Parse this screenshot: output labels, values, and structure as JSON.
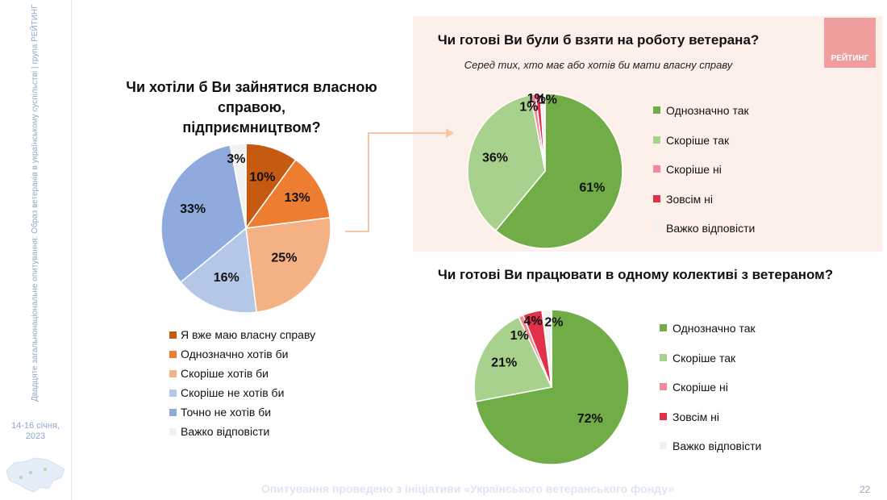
{
  "sidebar": {
    "vertical_text": "Двадцяте загальнонаціональне опитування: Образ ветеранів в українському суспільстві | група РЕЙТИНГ",
    "dates": "14-16 січня,",
    "year": "2023"
  },
  "logo": "РЕЙТИНГ",
  "footer": "Опитування проведено з ініціативи «Українського ветеранського фонду»",
  "page_number": "22",
  "chart_data": [
    {
      "type": "pie",
      "title_line1": "Чи хотіли б Ви зайнятися власною справою,",
      "title_line2": "підприємництвом?",
      "categories": [
        "Я вже маю власну справу",
        "Однозначно хотів би",
        "Скоріше хотів би",
        "Скоріше не хотів би",
        "Точно не хотів би",
        "Важко відповісти"
      ],
      "values": [
        10,
        13,
        25,
        16,
        33,
        3
      ],
      "labels": [
        "10%",
        "13%",
        "25%",
        "16%",
        "33%",
        "3%"
      ],
      "colors": [
        "#c55a11",
        "#ed7d31",
        "#f4b183",
        "#b4c7e7",
        "#8faadc",
        "#f2f2f2"
      ],
      "legend_position": "bottom"
    },
    {
      "type": "pie",
      "title": "Чи готові Ви були б взяти на роботу ветерана?",
      "subtitle": "Серед тих, хто має або хотів би мати власну справу",
      "categories": [
        "Однозначно так",
        "Скоріше так",
        "Скоріше ні",
        "Зовсім ні",
        "Важко відповісти"
      ],
      "values": [
        61,
        36,
        1,
        1,
        1
      ],
      "labels": [
        "61%",
        "36%",
        "1%",
        "1%",
        "1%"
      ],
      "colors": [
        "#70ad47",
        "#a9d18e",
        "#f08a96",
        "#e0304a",
        "#f2f2f2"
      ],
      "legend_position": "right"
    },
    {
      "type": "pie",
      "title": "Чи готові Ви працювати в одному колективі з ветераном?",
      "categories": [
        "Однозначно так",
        "Скоріше так",
        "Скоріше ні",
        "Зовсім ні",
        "Важко відповісти"
      ],
      "values": [
        72,
        21,
        1,
        4,
        2
      ],
      "labels": [
        "72%",
        "21%",
        "1%",
        "4%",
        "2%"
      ],
      "colors": [
        "#70ad47",
        "#a9d18e",
        "#f08a96",
        "#e0304a",
        "#f2f2f2"
      ],
      "legend_position": "right"
    }
  ]
}
